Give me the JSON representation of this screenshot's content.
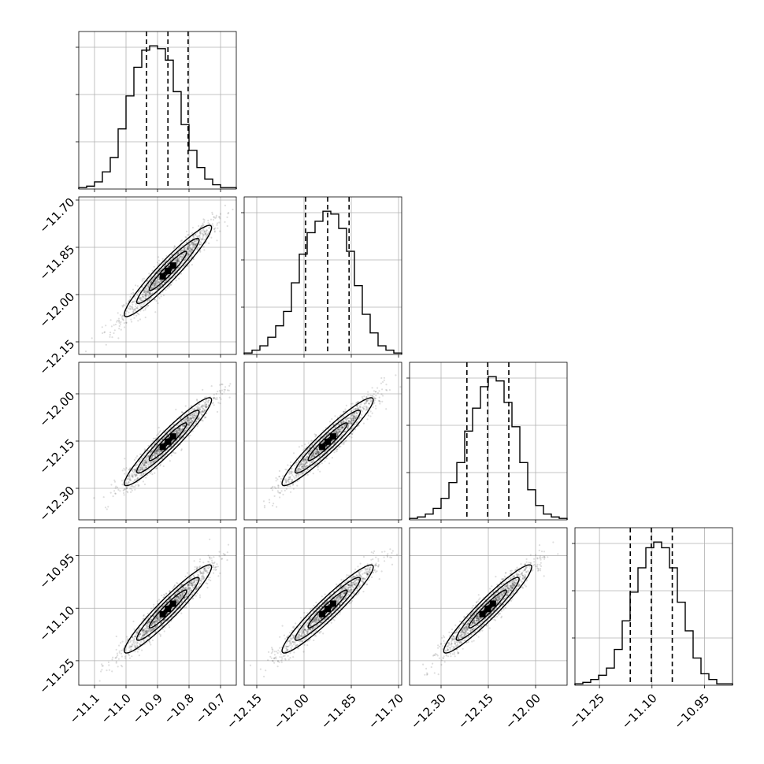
{
  "chart_data": {
    "type": "scatter",
    "title": "",
    "parameters": [
      {
        "range": [
          -11.15,
          -10.65
        ],
        "ticks": [
          -11.1,
          -11.0,
          -10.9,
          -10.8,
          -10.7
        ],
        "tick_labels": [
          "−11.1",
          "−11.0",
          "−10.9",
          "−10.8",
          "−10.7"
        ],
        "quantiles": [
          -10.935,
          -10.867,
          -10.803
        ],
        "hist_bins": [
          -11.15,
          -11.125,
          -11.1,
          -11.075,
          -11.05,
          -11.025,
          -11.0,
          -10.975,
          -10.95,
          -10.925,
          -10.9,
          -10.875,
          -10.85,
          -10.825,
          -10.8,
          -10.775,
          -10.75,
          -10.725,
          -10.7,
          -10.675,
          -10.65
        ],
        "hist_counts": [
          1,
          2,
          5,
          12,
          22,
          42,
          65,
          85,
          97,
          100,
          98,
          90,
          68,
          45,
          27,
          15,
          7,
          3,
          1,
          1
        ]
      },
      {
        "range": [
          -12.19,
          -11.69
        ],
        "ticks": [
          -12.15,
          -12.0,
          -11.85,
          -11.7
        ],
        "tick_labels": [
          "−12.15",
          "−12.00",
          "−11.85",
          "−11.70"
        ],
        "quantiles": [
          -11.995,
          -11.925,
          -11.857
        ],
        "hist_bins": [
          -12.19,
          -12.165,
          -12.14,
          -12.115,
          -12.09,
          -12.065,
          -12.04,
          -12.015,
          -11.99,
          -11.965,
          -11.94,
          -11.915,
          -11.89,
          -11.865,
          -11.84,
          -11.815,
          -11.79,
          -11.765,
          -11.74,
          -11.715,
          -11.69
        ],
        "hist_counts": [
          1,
          3,
          6,
          12,
          20,
          30,
          50,
          70,
          85,
          93,
          100,
          98,
          88,
          72,
          48,
          28,
          15,
          6,
          3,
          1
        ]
      },
      {
        "range": [
          -12.4,
          -11.9
        ],
        "ticks": [
          -12.3,
          -12.15,
          -12.0
        ],
        "tick_labels": [
          "−12.30",
          "−12.15",
          "−12.00"
        ],
        "quantiles": [
          -12.218,
          -12.152,
          -12.085
        ],
        "hist_bins": [
          -12.4,
          -12.375,
          -12.35,
          -12.325,
          -12.3,
          -12.275,
          -12.25,
          -12.225,
          -12.2,
          -12.175,
          -12.15,
          -12.125,
          -12.1,
          -12.075,
          -12.05,
          -12.025,
          -12.0,
          -11.975,
          -11.95,
          -11.925,
          -11.9
        ],
        "hist_counts": [
          1,
          2,
          4,
          8,
          15,
          26,
          40,
          62,
          78,
          93,
          100,
          97,
          82,
          65,
          40,
          21,
          10,
          4,
          2,
          1
        ]
      },
      {
        "range": [
          -11.32,
          -10.87
        ],
        "ticks": [
          -11.25,
          -11.1,
          -10.95
        ],
        "tick_labels": [
          "−11.25",
          "−11.10",
          "−10.95"
        ],
        "quantiles": [
          -11.162,
          -11.102,
          -11.042
        ],
        "hist_bins": [
          -11.32,
          -11.2975,
          -11.275,
          -11.2525,
          -11.23,
          -11.2075,
          -11.185,
          -11.1625,
          -11.14,
          -11.1175,
          -11.095,
          -11.0725,
          -11.05,
          -11.0275,
          -11.005,
          -10.9825,
          -10.96,
          -10.9375,
          -10.915,
          -10.8925,
          -10.87
        ],
        "hist_counts": [
          1,
          2,
          4,
          7,
          12,
          25,
          45,
          65,
          82,
          96,
          100,
          96,
          82,
          58,
          38,
          19,
          8,
          4,
          1,
          1
        ]
      }
    ],
    "means": [
      -10.867,
      -11.925,
      -12.152,
      -11.102
    ],
    "correlation": 0.95,
    "grid": true
  }
}
